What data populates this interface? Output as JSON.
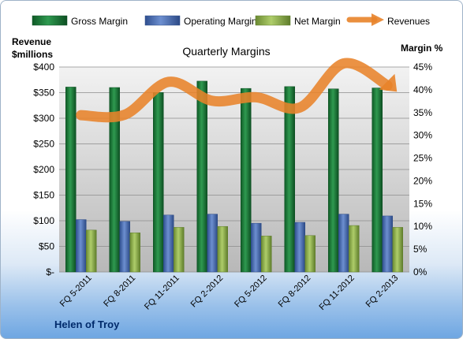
{
  "chart_data": {
    "type": "bar",
    "title": "Quarterly Margins",
    "categories": [
      "FQ 5-2011",
      "FQ 8-2011",
      "FQ 11-2011",
      "FQ 2-2012",
      "FQ 5-2012",
      "FQ 8-2012",
      "FQ 11-2012",
      "FQ 2-2013"
    ],
    "series": [
      {
        "name": "Gross Margin",
        "axis": "right",
        "type": "bar",
        "values": [
          40.6,
          40.5,
          39.4,
          41.9,
          40.3,
          40.7,
          40.2,
          40.4
        ],
        "color": "#1e7a3c"
      },
      {
        "name": "Operating Margin",
        "axis": "right",
        "type": "bar",
        "values": [
          11.5,
          11.1,
          12.5,
          12.7,
          10.7,
          10.9,
          12.7,
          12.3
        ],
        "color": "#4a6fb5"
      },
      {
        "name": "Net Margin",
        "axis": "right",
        "type": "bar",
        "values": [
          9.2,
          8.6,
          9.8,
          10.0,
          7.9,
          8.0,
          10.2,
          9.8
        ],
        "color": "#8db04d"
      },
      {
        "name": "Revenues",
        "axis": "left",
        "type": "line",
        "values": [
          306,
          307,
          371,
          334,
          341,
          321,
          407,
          364
        ],
        "color": "#e8832a"
      }
    ],
    "y_left": {
      "title_line1": "Revenue",
      "title_line2": "$millions",
      "range": [
        0,
        400
      ],
      "ticks": [
        "$-",
        "$50",
        "$100",
        "$150",
        "$200",
        "$250",
        "$300",
        "$350",
        "$400"
      ]
    },
    "y_right": {
      "title": "Margin %",
      "range": [
        0,
        45
      ],
      "ticks": [
        "0%",
        "5%",
        "10%",
        "15%",
        "20%",
        "25%",
        "30%",
        "35%",
        "40%",
        "45%"
      ]
    },
    "legend_position": "top",
    "grid": true
  },
  "footer": {
    "company": "Helen of Troy"
  }
}
